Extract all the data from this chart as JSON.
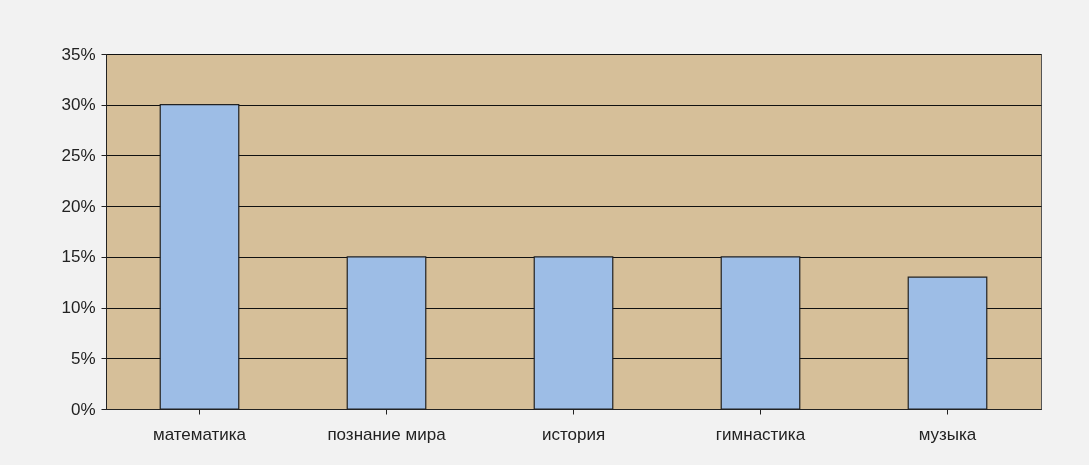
{
  "chart_data": {
    "type": "bar",
    "categories": [
      "математика",
      "познание мира",
      "история",
      "гимнастика",
      "музыка"
    ],
    "values": [
      30,
      15,
      15,
      15,
      13
    ],
    "color": "#9dbde6",
    "ylim": [
      0,
      35
    ],
    "yticks": [
      {
        "value": 0,
        "label": "0%"
      },
      {
        "value": 5,
        "label": "5%"
      },
      {
        "value": 10,
        "label": "10%"
      },
      {
        "value": 15,
        "label": "15%"
      },
      {
        "value": 20,
        "label": "20%"
      },
      {
        "value": 25,
        "label": "25%"
      },
      {
        "value": 30,
        "label": "30%"
      },
      {
        "value": 35,
        "label": "35%"
      }
    ],
    "grid": "y"
  }
}
